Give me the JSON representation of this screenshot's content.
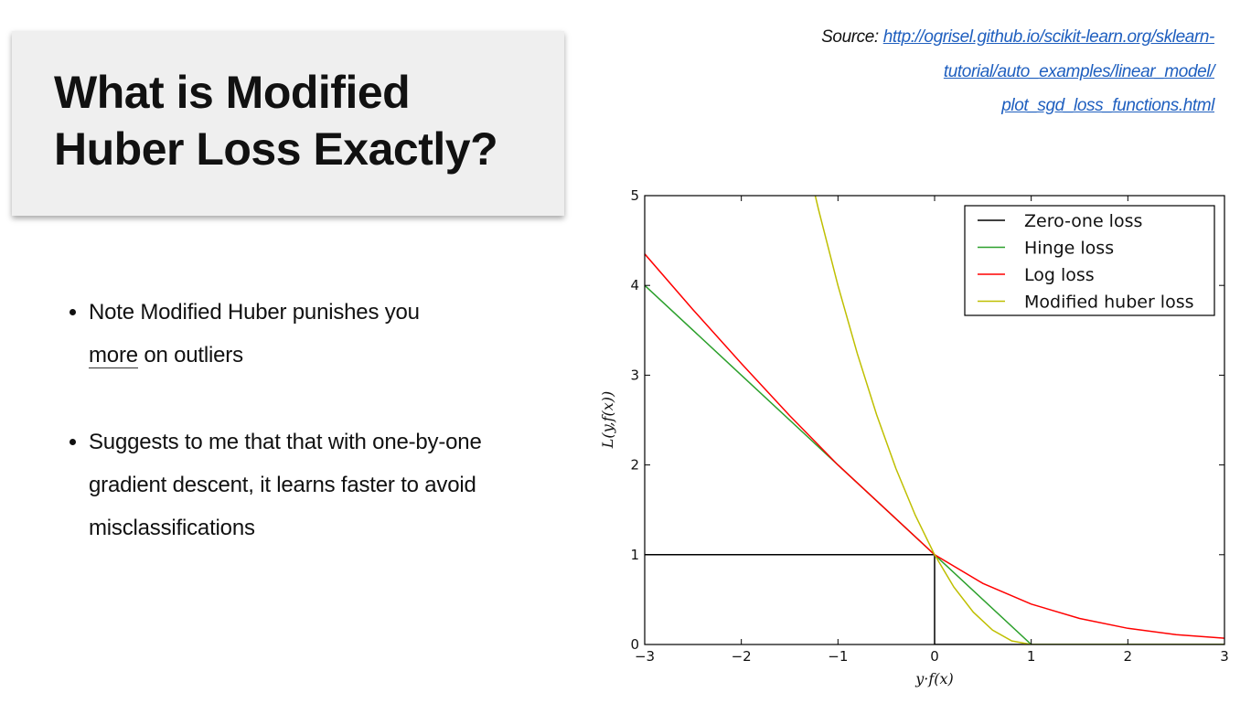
{
  "title": {
    "line1": "What is Modified",
    "line2": "Huber Loss Exactly?"
  },
  "source": {
    "label": "Source:",
    "link_line1": "http://ogrisel.github.io/scikit-learn.org/sklearn-",
    "link_line2": "tutorial/auto_examples/linear_model/",
    "link_line3": "plot_sgd_loss_functions.html"
  },
  "bullets": {
    "b1_part1": "Note Modified Huber punishes you",
    "b1_underlined": "more",
    "b1_part2": " on outliers",
    "b2": "Suggests to me that that with one-by-one gradient descent, it learns faster to avoid misclassifications"
  },
  "chart_data": {
    "type": "line",
    "xlabel": "y·f(x)",
    "ylabel": "L(y,f(x))",
    "xlim": [
      -3,
      3
    ],
    "ylim": [
      0,
      5
    ],
    "xticks": [
      -3,
      -2,
      -1,
      0,
      1,
      2,
      3
    ],
    "xtick_labels": [
      "−3",
      "−2",
      "−1",
      "0",
      "1",
      "2",
      "3"
    ],
    "yticks": [
      0,
      1,
      2,
      3,
      4,
      5
    ],
    "ytick_labels": [
      "0",
      "1",
      "2",
      "3",
      "4",
      "5"
    ],
    "grid": false,
    "legend_position": "top-right",
    "series": [
      {
        "name": "Zero-one loss",
        "color": "#000000",
        "x": [
          -3,
          0,
          0,
          3
        ],
        "y": [
          1,
          1,
          0,
          0
        ]
      },
      {
        "name": "Hinge loss",
        "color": "#2ca02c",
        "x": [
          -3,
          -2,
          -1,
          0,
          1,
          2,
          3
        ],
        "y": [
          4,
          3,
          2,
          1,
          0,
          0,
          0
        ]
      },
      {
        "name": "Log loss",
        "color": "#ff0000",
        "x": [
          -3,
          -2.5,
          -2,
          -1.5,
          -1,
          -0.5,
          0,
          0.5,
          1,
          1.5,
          2,
          2.5,
          3
        ],
        "y": [
          4.35,
          3.73,
          3.13,
          2.55,
          2.0,
          1.5,
          1.0,
          0.68,
          0.45,
          0.29,
          0.18,
          0.11,
          0.07
        ]
      },
      {
        "name": "Modified huber loss",
        "color": "#bfbf00",
        "x": [
          -1.33,
          -1.2,
          -1,
          -0.8,
          -0.6,
          -0.4,
          -0.2,
          0,
          0.2,
          0.4,
          0.6,
          0.8,
          1,
          2,
          3
        ],
        "y": [
          5.43,
          4.84,
          4.0,
          3.24,
          2.56,
          1.96,
          1.44,
          1.0,
          0.64,
          0.36,
          0.16,
          0.04,
          0,
          0,
          0
        ]
      }
    ]
  }
}
